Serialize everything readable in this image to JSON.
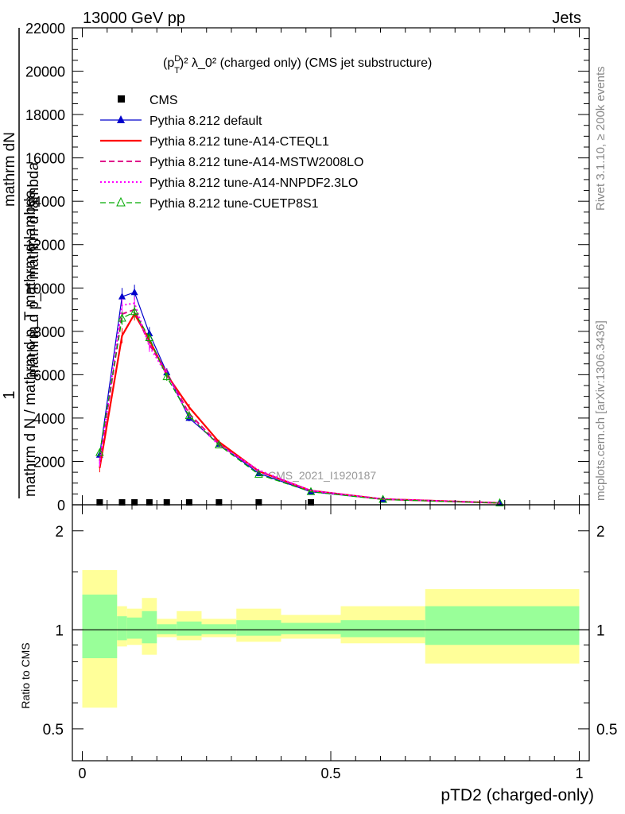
{
  "header": {
    "energy": "13000 GeV pp",
    "process": "Jets"
  },
  "side_labels": {
    "rivet": "Rivet 3.1.10, ≥ 200k events",
    "mcplots": "mcplots.cern.ch [arXiv:1306.3436]"
  },
  "chart_data": {
    "type": "line",
    "title_parts": {
      "p": "(p",
      "sup": "D",
      "sub": "T",
      "rest": ")² λ_0² (charged only) (CMS jet substructure)"
    },
    "watermark": "CMS_2021_I1920187",
    "xlabel": "pTD2 (charged-only)",
    "ylabel_main": {
      "numerator": "1",
      "den_top_left": "mathrm dN",
      "den_top_right": "mathrm d p_T mathrm d lambda",
      "denominator": "mathrm d N / mathrm d p_T mathrm d lambda"
    },
    "ylabel_ratio": "Ratio to CMS",
    "xlim": [
      -0.02,
      1.02
    ],
    "ylim_main": [
      0,
      22000
    ],
    "ylim_ratio": [
      0.4,
      2.4
    ],
    "x_ticks": [
      {
        "value": 0,
        "label": "0"
      },
      {
        "value": 0.5,
        "label": "0.5"
      },
      {
        "value": 1,
        "label": "1"
      }
    ],
    "y_ticks_main": [
      {
        "value": 0,
        "label": "0"
      },
      {
        "value": 2000,
        "label": "2000"
      },
      {
        "value": 4000,
        "label": "4000"
      },
      {
        "value": 6000,
        "label": "6000"
      },
      {
        "value": 8000,
        "label": "8000"
      },
      {
        "value": 10000,
        "label": "10000"
      },
      {
        "value": 12000,
        "label": "12000"
      },
      {
        "value": 14000,
        "label": "14000"
      },
      {
        "value": 16000,
        "label": "16000"
      },
      {
        "value": 18000,
        "label": "18000"
      },
      {
        "value": 20000,
        "label": "20000"
      },
      {
        "value": 22000,
        "label": "22000"
      }
    ],
    "y_ticks_ratio": [
      {
        "value": 0.5,
        "label": "0.5"
      },
      {
        "value": 1,
        "label": "1"
      },
      {
        "value": 2,
        "label": "2"
      }
    ],
    "x": [
      0.035,
      0.08,
      0.105,
      0.135,
      0.17,
      0.215,
      0.275,
      0.355,
      0.46,
      0.605,
      0.84
    ],
    "cms_points": [
      {
        "x": 0.035,
        "y": 0
      },
      {
        "x": 0.08,
        "y": 0
      },
      {
        "x": 0.105,
        "y": 0
      },
      {
        "x": 0.135,
        "y": 0
      },
      {
        "x": 0.17,
        "y": 0
      },
      {
        "x": 0.215,
        "y": 0
      },
      {
        "x": 0.275,
        "y": 0
      },
      {
        "x": 0.355,
        "y": 0
      },
      {
        "x": 0.46,
        "y": 0
      }
    ],
    "series": [
      {
        "name": "Pythia 8.212 default",
        "color": "#0000cc",
        "style": "solid",
        "width": 1.2,
        "marker": "triangle-filled",
        "values": [
          2300,
          9600,
          9800,
          7900,
          6100,
          4000,
          2800,
          1450,
          600,
          250,
          80
        ],
        "errors": [
          200,
          400,
          350,
          300,
          200,
          150,
          100,
          60,
          40,
          20,
          10
        ]
      },
      {
        "name": "Pythia 8.212 tune-A14-CTEQL1",
        "color": "#ff0000",
        "style": "solid",
        "width": 2.2,
        "marker": "none",
        "values": [
          1700,
          7800,
          8800,
          7600,
          6000,
          4500,
          2900,
          1550,
          650,
          260,
          85
        ],
        "errors": [
          200,
          350,
          300,
          250,
          200,
          150,
          100,
          60,
          40,
          20,
          10
        ]
      },
      {
        "name": "Pythia 8.212 tune-A14-MSTW2008LO",
        "color": "#e0008a",
        "style": "dashed",
        "width": 2,
        "marker": "none",
        "values": [
          2000,
          8800,
          9000,
          7400,
          6100,
          4200,
          2800,
          1550,
          650,
          260,
          85
        ],
        "errors": [
          150,
          300,
          300,
          250,
          180,
          130,
          90,
          50,
          30,
          20,
          10
        ]
      },
      {
        "name": "Pythia 8.212 tune-A14-NNPDF2.3LO",
        "color": "#ff00ff",
        "style": "dotted",
        "width": 2,
        "marker": "none",
        "values": [
          1900,
          9200,
          9300,
          7300,
          6000,
          4100,
          2750,
          1600,
          650,
          260,
          85
        ],
        "errors": [
          150,
          300,
          300,
          250,
          180,
          130,
          90,
          50,
          30,
          20,
          10
        ]
      },
      {
        "name": "Pythia 8.212 tune-CUETP8S1",
        "color": "#00aa00",
        "style": "dashed",
        "width": 1.2,
        "marker": "triangle-open",
        "values": [
          2400,
          8600,
          8900,
          7700,
          5900,
          4100,
          2750,
          1400,
          600,
          240,
          80
        ],
        "errors": [
          150,
          300,
          300,
          250,
          180,
          130,
          90,
          50,
          30,
          20,
          10
        ]
      }
    ],
    "legend": {
      "cms_label": "CMS"
    },
    "ratio_bands": [
      {
        "x0": 0.0,
        "x1": 0.07,
        "green_lo": 0.82,
        "green_hi": 1.28,
        "yellow_lo": 0.58,
        "yellow_hi": 1.52
      },
      {
        "x0": 0.07,
        "x1": 0.09,
        "green_lo": 0.93,
        "green_hi": 1.1,
        "yellow_lo": 0.89,
        "yellow_hi": 1.18
      },
      {
        "x0": 0.09,
        "x1": 0.12,
        "green_lo": 0.94,
        "green_hi": 1.09,
        "yellow_lo": 0.9,
        "yellow_hi": 1.16
      },
      {
        "x0": 0.12,
        "x1": 0.15,
        "green_lo": 0.91,
        "green_hi": 1.14,
        "yellow_lo": 0.84,
        "yellow_hi": 1.25
      },
      {
        "x0": 0.15,
        "x1": 0.19,
        "green_lo": 0.97,
        "green_hi": 1.04,
        "yellow_lo": 0.95,
        "yellow_hi": 1.08
      },
      {
        "x0": 0.19,
        "x1": 0.24,
        "green_lo": 0.96,
        "green_hi": 1.06,
        "yellow_lo": 0.93,
        "yellow_hi": 1.14
      },
      {
        "x0": 0.24,
        "x1": 0.31,
        "green_lo": 0.97,
        "green_hi": 1.04,
        "yellow_lo": 0.95,
        "yellow_hi": 1.08
      },
      {
        "x0": 0.31,
        "x1": 0.4,
        "green_lo": 0.96,
        "green_hi": 1.07,
        "yellow_lo": 0.92,
        "yellow_hi": 1.16
      },
      {
        "x0": 0.4,
        "x1": 0.52,
        "green_lo": 0.97,
        "green_hi": 1.05,
        "yellow_lo": 0.94,
        "yellow_hi": 1.11
      },
      {
        "x0": 0.52,
        "x1": 0.69,
        "green_lo": 0.95,
        "green_hi": 1.07,
        "yellow_lo": 0.91,
        "yellow_hi": 1.18
      },
      {
        "x0": 0.69,
        "x1": 1.0,
        "green_lo": 0.9,
        "green_hi": 1.18,
        "yellow_lo": 0.79,
        "yellow_hi": 1.33
      }
    ],
    "colors": {
      "band_green": "#99ff99",
      "band_yellow": "#ffff99",
      "cms": "#000000",
      "frame": "#000000"
    }
  }
}
